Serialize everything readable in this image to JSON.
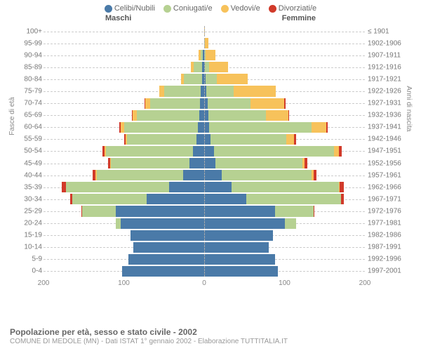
{
  "legend": [
    {
      "label": "Celibi/Nubili",
      "color": "#4a7aa8"
    },
    {
      "label": "Coniugati/e",
      "color": "#b6d192"
    },
    {
      "label": "Vedovi/e",
      "color": "#f7c25b"
    },
    {
      "label": "Divorziati/e",
      "color": "#d13a2a"
    }
  ],
  "headers": {
    "male": "Maschi",
    "female": "Femmine"
  },
  "axis": {
    "y_left_title": "Fasce di età",
    "y_right_title": "Anni di nascita",
    "x_max": 200,
    "x_ticks": [
      200,
      100,
      0,
      100,
      200
    ]
  },
  "footer": {
    "title": "Popolazione per età, sesso e stato civile - 2002",
    "sub": "COMUNE DI MEDOLE (MN) - Dati ISTAT 1° gennaio 2002 - Elaborazione TUTTITALIA.IT"
  },
  "colors": {
    "grid": "#cccccc",
    "text_muted": "#888888",
    "background": "#ffffff"
  },
  "rows": [
    {
      "age": "100+",
      "year": "≤ 1901",
      "m": [
        0,
        0,
        0,
        0
      ],
      "f": [
        0,
        0,
        1,
        0
      ]
    },
    {
      "age": "95-99",
      "year": "1902-1906",
      "m": [
        0,
        0,
        0,
        0
      ],
      "f": [
        0,
        1,
        4,
        0
      ]
    },
    {
      "age": "90-94",
      "year": "1907-1911",
      "m": [
        2,
        2,
        3,
        0
      ],
      "f": [
        0,
        2,
        12,
        0
      ]
    },
    {
      "age": "85-89",
      "year": "1912-1916",
      "m": [
        3,
        10,
        4,
        0
      ],
      "f": [
        1,
        5,
        24,
        0
      ]
    },
    {
      "age": "80-84",
      "year": "1917-1921",
      "m": [
        3,
        22,
        4,
        0
      ],
      "f": [
        2,
        14,
        38,
        0
      ]
    },
    {
      "age": "75-79",
      "year": "1922-1926",
      "m": [
        4,
        46,
        6,
        0
      ],
      "f": [
        3,
        34,
        52,
        0
      ]
    },
    {
      "age": "70-74",
      "year": "1927-1931",
      "m": [
        5,
        62,
        6,
        1
      ],
      "f": [
        4,
        54,
        42,
        1
      ]
    },
    {
      "age": "65-69",
      "year": "1932-1936",
      "m": [
        6,
        78,
        5,
        1
      ],
      "f": [
        5,
        72,
        28,
        1
      ]
    },
    {
      "age": "60-64",
      "year": "1937-1941",
      "m": [
        8,
        92,
        4,
        2
      ],
      "f": [
        6,
        128,
        18,
        2
      ]
    },
    {
      "age": "55-59",
      "year": "1942-1946",
      "m": [
        10,
        86,
        2,
        2
      ],
      "f": [
        8,
        94,
        10,
        2
      ]
    },
    {
      "age": "50-54",
      "year": "1947-1951",
      "m": [
        14,
        108,
        2,
        3
      ],
      "f": [
        12,
        150,
        6,
        3
      ]
    },
    {
      "age": "45-49",
      "year": "1952-1956",
      "m": [
        18,
        98,
        1,
        3
      ],
      "f": [
        14,
        108,
        3,
        3
      ]
    },
    {
      "age": "40-44",
      "year": "1957-1961",
      "m": [
        26,
        108,
        1,
        4
      ],
      "f": [
        22,
        112,
        2,
        4
      ]
    },
    {
      "age": "35-39",
      "year": "1962-1966",
      "m": [
        44,
        128,
        0,
        5
      ],
      "f": [
        34,
        134,
        1,
        5
      ]
    },
    {
      "age": "30-34",
      "year": "1967-1971",
      "m": [
        72,
        92,
        0,
        3
      ],
      "f": [
        52,
        118,
        0,
        4
      ]
    },
    {
      "age": "25-29",
      "year": "1972-1976",
      "m": [
        110,
        42,
        0,
        1
      ],
      "f": [
        88,
        48,
        0,
        1
      ]
    },
    {
      "age": "20-24",
      "year": "1977-1981",
      "m": [
        104,
        6,
        0,
        0
      ],
      "f": [
        100,
        14,
        0,
        0
      ]
    },
    {
      "age": "15-19",
      "year": "1982-1986",
      "m": [
        92,
        0,
        0,
        0
      ],
      "f": [
        86,
        0,
        0,
        0
      ]
    },
    {
      "age": "10-14",
      "year": "1987-1991",
      "m": [
        88,
        0,
        0,
        0
      ],
      "f": [
        80,
        0,
        0,
        0
      ]
    },
    {
      "age": "5-9",
      "year": "1992-1996",
      "m": [
        94,
        0,
        0,
        0
      ],
      "f": [
        88,
        0,
        0,
        0
      ]
    },
    {
      "age": "0-4",
      "year": "1997-2001",
      "m": [
        102,
        0,
        0,
        0
      ],
      "f": [
        92,
        0,
        0,
        0
      ]
    }
  ]
}
